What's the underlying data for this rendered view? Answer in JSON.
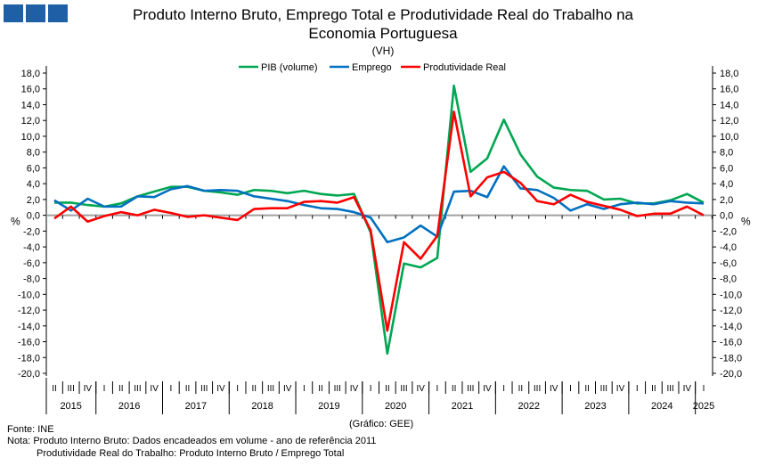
{
  "chart_data": {
    "type": "line",
    "title": "Produto Interno Bruto, Emprego Total e Produtividade Real do Trabalho na Economia Portuguesa",
    "subtitle": "(VH)",
    "ylabel": "%",
    "ylim": [
      -20,
      18
    ],
    "yticks": [
      "-20,0",
      "-18,0",
      "-16,0",
      "-14,0",
      "-12,0",
      "-10,0",
      "-8,0",
      "-6,0",
      "-4,0",
      "-2,0",
      "0,0",
      "2,0",
      "4,0",
      "6,0",
      "8,0",
      "10,0",
      "12,0",
      "14,0",
      "16,0",
      "18,0"
    ],
    "legend_position": "top-center",
    "years": [
      {
        "label": "2015",
        "quarters": [
          "II",
          "III",
          "IV"
        ]
      },
      {
        "label": "2016",
        "quarters": [
          "I",
          "II",
          "III",
          "IV"
        ]
      },
      {
        "label": "2017",
        "quarters": [
          "I",
          "II",
          "III",
          "IV"
        ]
      },
      {
        "label": "2018",
        "quarters": [
          "I",
          "II",
          "III",
          "IV"
        ]
      },
      {
        "label": "2019",
        "quarters": [
          "I",
          "II",
          "III",
          "IV"
        ]
      },
      {
        "label": "2020",
        "quarters": [
          "I",
          "II",
          "III",
          "IV"
        ]
      },
      {
        "label": "2021",
        "quarters": [
          "I",
          "II",
          "III",
          "IV"
        ]
      },
      {
        "label": "2022",
        "quarters": [
          "I",
          "II",
          "III",
          "IV"
        ]
      },
      {
        "label": "2023",
        "quarters": [
          "I",
          "II",
          "III",
          "IV"
        ]
      },
      {
        "label": "2024",
        "quarters": [
          "I",
          "II",
          "III",
          "IV"
        ]
      },
      {
        "label": "2025",
        "quarters": [
          "I"
        ]
      }
    ],
    "series": [
      {
        "name": "PIB (volume)",
        "color": "#00a651",
        "values": [
          1.6,
          1.6,
          1.3,
          1.1,
          1.5,
          2.4,
          3.0,
          3.6,
          3.6,
          3.1,
          2.9,
          2.6,
          3.2,
          3.1,
          2.8,
          3.1,
          2.7,
          2.5,
          2.7,
          -2.2,
          -17.5,
          -6.1,
          -6.6,
          -5.4,
          16.4,
          5.5,
          7.2,
          12.1,
          7.7,
          4.9,
          3.5,
          3.2,
          3.1,
          2.0,
          2.1,
          1.5,
          1.5,
          1.9,
          2.7,
          1.6
        ]
      },
      {
        "name": "Emprego",
        "color": "#0070c0",
        "values": [
          1.9,
          0.6,
          2.1,
          1.1,
          1.1,
          2.4,
          2.3,
          3.3,
          3.7,
          3.1,
          3.2,
          3.1,
          2.4,
          2.1,
          1.8,
          1.3,
          0.9,
          0.8,
          0.4,
          -0.3,
          -3.4,
          -2.8,
          -1.3,
          -2.7,
          3.0,
          3.1,
          2.3,
          6.2,
          3.4,
          3.2,
          2.2,
          0.6,
          1.4,
          0.8,
          1.4,
          1.6,
          1.4,
          1.8,
          1.6,
          1.5
        ]
      },
      {
        "name": "Produtividade Real",
        "color": "#ff0000",
        "values": [
          -0.4,
          1.1,
          -0.8,
          -0.1,
          0.4,
          0.0,
          0.7,
          0.3,
          -0.2,
          0.0,
          -0.3,
          -0.6,
          0.8,
          0.9,
          0.9,
          1.7,
          1.8,
          1.6,
          2.3,
          -1.9,
          -14.6,
          -3.4,
          -5.5,
          -2.6,
          13.1,
          2.4,
          4.8,
          5.5,
          4.1,
          1.8,
          1.4,
          2.6,
          1.7,
          1.2,
          0.7,
          -0.1,
          0.2,
          0.2,
          1.1,
          0.0
        ]
      }
    ]
  },
  "footer": {
    "source": "Fonte: INE",
    "credit": "(Gráfico: GEE)",
    "note1": "Nota: Produto Interno Bruto: Dados encadeados em volume - ano de referência 2011",
    "note2": "Produtividade Real do Trabalho: Produto Interno Bruto / Emprego Total"
  }
}
